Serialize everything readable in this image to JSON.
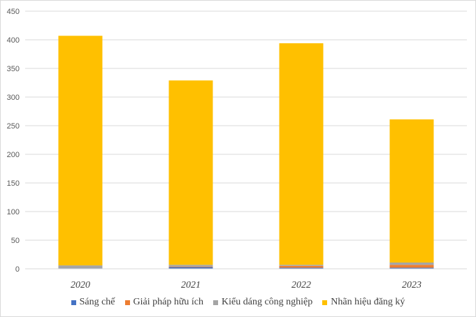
{
  "chart_data": {
    "type": "bar",
    "stacked": true,
    "categories": [
      "2020",
      "2021",
      "2022",
      "2023"
    ],
    "series": [
      {
        "name": "Sáng chế",
        "color": "#4472c4",
        "values": [
          1,
          3,
          2,
          2
        ]
      },
      {
        "name": "Giải pháp hữu ích",
        "color": "#ed7d31",
        "values": [
          0,
          1,
          3,
          5
        ]
      },
      {
        "name": "Kiểu dáng công nghiệp",
        "color": "#a5a5a5",
        "values": [
          5,
          3,
          2,
          4
        ]
      },
      {
        "name": "Nhãn hiệu đăng ký",
        "color": "#ffc000",
        "values": [
          401,
          322,
          387,
          250
        ]
      }
    ],
    "yticks": [
      "0",
      "50",
      "100",
      "150",
      "200",
      "250",
      "300",
      "350",
      "400",
      "450"
    ],
    "ylim": [
      0,
      450
    ],
    "title": "",
    "xlabel": "",
    "ylabel": "",
    "grid": true,
    "legend_position": "bottom"
  }
}
